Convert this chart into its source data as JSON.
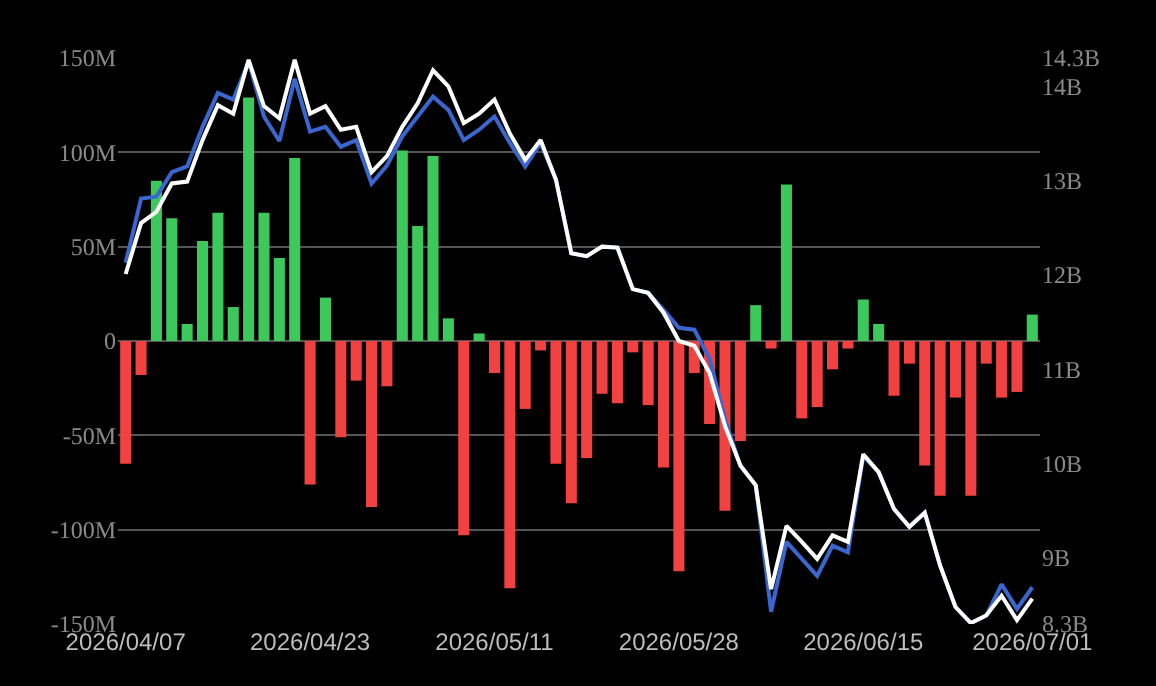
{
  "chart_data": {
    "type": "bar",
    "categories": [
      "2026/04/07",
      null,
      null,
      null,
      null,
      null,
      null,
      null,
      null,
      null,
      null,
      null,
      "2026/04/23",
      null,
      null,
      null,
      null,
      null,
      null,
      null,
      null,
      null,
      null,
      null,
      "2026/05/11",
      null,
      null,
      null,
      null,
      null,
      null,
      null,
      null,
      null,
      null,
      null,
      "2026/05/28",
      null,
      null,
      null,
      null,
      null,
      null,
      null,
      null,
      null,
      null,
      null,
      "2026/06/15",
      null,
      null,
      null,
      null,
      null,
      null,
      null,
      null,
      null,
      null,
      "2026/07/01"
    ],
    "series": [
      {
        "values": [
          -65,
          -18,
          85,
          65,
          9,
          53,
          68,
          18,
          129,
          68,
          44,
          97,
          -76,
          23,
          -51,
          -21,
          -88,
          -24,
          101,
          61,
          98,
          12,
          -103,
          4,
          -17,
          -131,
          -36,
          -5,
          -65,
          -86,
          -62,
          -28,
          -33,
          -6,
          -34,
          -67,
          -122,
          -17,
          -44,
          -90,
          -53,
          19,
          -4,
          83,
          -41,
          -35,
          -15,
          -4,
          22,
          9,
          -29,
          -12,
          -66,
          -82,
          -30,
          -82,
          -12,
          -30,
          -27,
          14
        ],
        "colors": [
          "#f24141",
          "#f24141",
          "#3cc85a",
          "#3cc85a",
          "#3cc85a",
          "#3cc85a",
          "#3cc85a",
          "#3cc85a",
          "#3cc85a",
          "#3cc85a",
          "#3cc85a",
          "#3cc85a",
          "#f24141",
          "#3cc85a",
          "#f24141",
          "#f24141",
          "#f24141",
          "#f24141",
          "#3cc85a",
          "#3cc85a",
          "#3cc85a",
          "#3cc85a",
          "#f24141",
          "#3cc85a",
          "#f24141",
          "#f24141",
          "#f24141",
          "#f24141",
          "#f24141",
          "#f24141",
          "#f24141",
          "#f24141",
          "#f24141",
          "#f24141",
          "#f24141",
          "#f24141",
          "#f24141",
          "#f24141",
          "#f24141",
          "#f24141",
          "#f24141",
          "#3cc85a",
          "#f24141",
          "#3cc85a",
          "#f24141",
          "#f24141",
          "#f24141",
          "#f24141",
          "#3cc85a",
          "#3cc85a",
          "#f24141",
          "#f24141",
          "#f24141",
          "#f24141",
          "#f24141",
          "#f24141",
          "#f24141",
          "#f24141",
          "#f24141",
          "#3cc85a"
        ]
      },
      {
        "type": "line",
        "axis": "y2",
        "color": "#3a66d0",
        "values": [
          12.13,
          12.81,
          12.83,
          13.09,
          13.15,
          13.57,
          13.93,
          13.86,
          14.26,
          13.68,
          13.42,
          14.08,
          13.52,
          13.57,
          13.36,
          13.43,
          12.97,
          13.16,
          13.47,
          13.68,
          13.89,
          13.75,
          13.43,
          13.54,
          13.68,
          13.4,
          13.15,
          13.4,
          13.01,
          12.23,
          12.2,
          12.3,
          12.29,
          11.85,
          11.81,
          11.63,
          11.44,
          11.42,
          11.11,
          10.47,
          9.98,
          9.77,
          8.43,
          9.17,
          8.99,
          8.81,
          9.13,
          9.06,
          10.08,
          9.91,
          9.52,
          9.33,
          9.48,
          8.92,
          8.48,
          8.31,
          8.39,
          8.72,
          8.46,
          8.69
        ]
      },
      {
        "type": "line",
        "axis": "y2",
        "color": "#ffffff",
        "values": [
          12.01,
          12.55,
          12.67,
          12.97,
          12.99,
          13.43,
          13.8,
          13.71,
          14.28,
          13.79,
          13.66,
          14.28,
          13.71,
          13.79,
          13.54,
          13.57,
          13.09,
          13.26,
          13.57,
          13.82,
          14.17,
          14.0,
          13.61,
          13.71,
          13.86,
          13.5,
          13.22,
          13.43,
          13.01,
          12.23,
          12.2,
          12.3,
          12.29,
          11.85,
          11.81,
          11.6,
          11.3,
          11.25,
          10.96,
          10.4,
          9.98,
          9.77,
          8.67,
          9.34,
          9.17,
          8.99,
          9.24,
          9.17,
          10.1,
          9.91,
          9.52,
          9.33,
          9.48,
          8.92,
          8.48,
          8.31,
          8.39,
          8.6,
          8.34,
          8.57
        ]
      }
    ],
    "ylim": [
      -150,
      150
    ],
    "yticks": [
      {
        "value": -150,
        "label": "-150M"
      },
      {
        "value": -100,
        "label": "-100M"
      },
      {
        "value": -50,
        "label": "-50M"
      },
      0,
      {
        "value": 50,
        "label": "50M"
      },
      {
        "value": 100,
        "label": "100M"
      },
      {
        "value": 150,
        "label": "150M"
      }
    ],
    "y2lim": [
      8.3,
      14.3
    ],
    "y2ticks": [
      {
        "value": 8.3,
        "label": "8.3B"
      },
      {
        "value": 9,
        "label": "9B"
      },
      {
        "value": 10,
        "label": "10B"
      },
      {
        "value": 11,
        "label": "11B"
      },
      {
        "value": 12,
        "label": "12B"
      },
      {
        "value": 13,
        "label": "13B"
      },
      {
        "value": 14,
        "label": "14B"
      },
      {
        "value": 14.3,
        "label": "14.3B"
      }
    ],
    "grid": "y"
  }
}
